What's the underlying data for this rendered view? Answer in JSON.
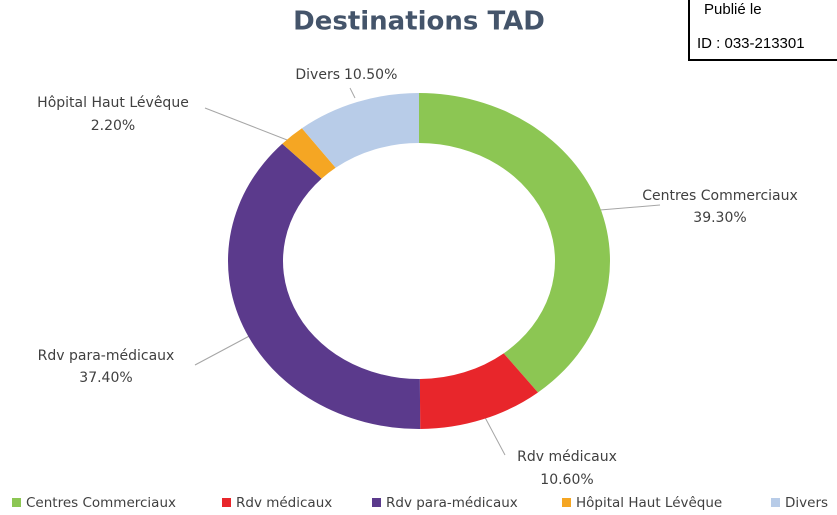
{
  "chart_data": {
    "type": "doughnut",
    "title": "Destinations TAD",
    "categories": [
      "Centres Commerciaux",
      "Rdv médicaux",
      "Rdv para-médicaux",
      "Hôpital Haut Lévêque",
      "Divers"
    ],
    "values": [
      39.3,
      10.6,
      37.4,
      2.2,
      10.5
    ],
    "value_labels": [
      "39.30%",
      "10.60%",
      "37.40%",
      "2.20%",
      "10.50%"
    ],
    "colors": [
      "#8cc653",
      "#e8262b",
      "#5b3a8c",
      "#f5a623",
      "#b8cce8"
    ],
    "legend": "bottom"
  },
  "stamp": {
    "lines": [
      "Publié le",
      "ID : 033-213301"
    ]
  }
}
